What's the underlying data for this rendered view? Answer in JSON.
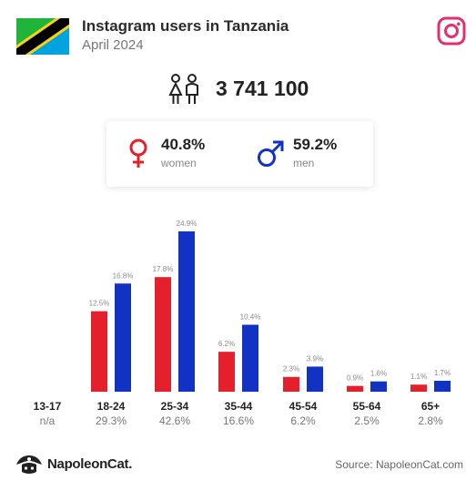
{
  "header": {
    "title": "Instagram users in Tanzania",
    "subtitle": "April 2024"
  },
  "total": {
    "value": "3 741 100"
  },
  "gender": {
    "women": {
      "pct": "40.8%",
      "label": "women"
    },
    "men": {
      "pct": "59.2%",
      "label": "men"
    }
  },
  "colors": {
    "women": "#e3202b",
    "men": "#1232c4",
    "instagram": "#e1306c"
  },
  "icons": {
    "flag": "tanzania-flag-icon",
    "instagram": "instagram-icon",
    "people": "people-icon",
    "women": "female-symbol-icon",
    "men": "male-symbol-icon",
    "logo": "napoleoncat-logo-icon"
  },
  "chart_data": {
    "type": "bar",
    "categories": [
      "13-17",
      "18-24",
      "25-34",
      "35-44",
      "45-54",
      "55-64",
      "65+"
    ],
    "totals": [
      "n/a",
      "29.3%",
      "42.6%",
      "16.6%",
      "6.2%",
      "2.5%",
      "2.8%"
    ],
    "series": [
      {
        "name": "women",
        "values": [
          null,
          12.5,
          17.8,
          6.2,
          2.3,
          0.9,
          1.1
        ],
        "labels": [
          "",
          "12.5%",
          "17.8%",
          "6.2%",
          "2.3%",
          "0.9%",
          "1.1%"
        ]
      },
      {
        "name": "men",
        "values": [
          null,
          16.8,
          24.9,
          10.4,
          3.9,
          1.6,
          1.7
        ],
        "labels": [
          "",
          "16.8%",
          "24.9%",
          "10.4%",
          "3.9%",
          "1.6%",
          "1.7%"
        ]
      }
    ],
    "ylim": [
      0,
      24.9
    ],
    "grid": false,
    "legend": "none"
  },
  "footer": {
    "logo_text": "NapoleonCat.",
    "source": "Source: NapoleonCat.com"
  }
}
